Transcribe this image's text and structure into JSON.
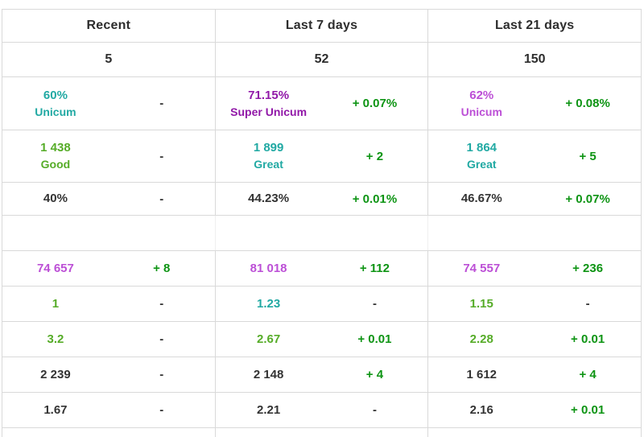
{
  "palette": {
    "dark": "#333333",
    "teal": "#21a9a3",
    "green": "#56ac28",
    "delta_green": "#0e9414",
    "unicum": "#bc4fd6",
    "super_unicum": "#9118a8",
    "border": "#d9d9d9",
    "background": "#ffffff"
  },
  "summary_table": {
    "columns": [
      "Recent",
      "Last 7 days",
      "Last 21 days"
    ],
    "battle_counts": [
      "5",
      "52",
      "150"
    ],
    "rows": [
      {
        "cells": [
          {
            "value": "60%",
            "label": "Unicum",
            "color": "teal",
            "delta": "-",
            "delta_color": "dark"
          },
          {
            "value": "71.15%",
            "label": "Super Unicum",
            "color": "super_unicum",
            "delta": "+ 0.07%",
            "delta_color": "delta_green"
          },
          {
            "value": "62%",
            "label": "Unicum",
            "color": "unicum",
            "delta": "+ 0.08%",
            "delta_color": "delta_green"
          }
        ]
      },
      {
        "cells": [
          {
            "value": "1 438",
            "label": "Good",
            "color": "green",
            "delta": "-",
            "delta_color": "dark"
          },
          {
            "value": "1 899",
            "label": "Great",
            "color": "teal",
            "delta": "+ 2",
            "delta_color": "delta_green"
          },
          {
            "value": "1 864",
            "label": "Great",
            "color": "teal",
            "delta": "+ 5",
            "delta_color": "delta_green"
          }
        ]
      },
      {
        "cells": [
          {
            "value": "40%",
            "color": "dark",
            "delta": "-",
            "delta_color": "dark"
          },
          {
            "value": "44.23%",
            "color": "dark",
            "delta": "+ 0.01%",
            "delta_color": "delta_green"
          },
          {
            "value": "46.67%",
            "color": "dark",
            "delta": "+ 0.07%",
            "delta_color": "delta_green"
          }
        ]
      }
    ]
  },
  "stats_table": {
    "rows": [
      {
        "cells": [
          {
            "value": "74 657",
            "color": "unicum",
            "delta": "+ 8",
            "delta_color": "delta_green"
          },
          {
            "value": "81 018",
            "color": "unicum",
            "delta": "+ 112",
            "delta_color": "delta_green"
          },
          {
            "value": "74 557",
            "color": "unicum",
            "delta": "+ 236",
            "delta_color": "delta_green"
          }
        ]
      },
      {
        "cells": [
          {
            "value": "1",
            "color": "green",
            "delta": "-",
            "delta_color": "dark"
          },
          {
            "value": "1.23",
            "color": "teal",
            "delta": "-",
            "delta_color": "dark"
          },
          {
            "value": "1.15",
            "color": "green",
            "delta": "-",
            "delta_color": "dark"
          }
        ]
      },
      {
        "cells": [
          {
            "value": "3.2",
            "color": "green",
            "delta": "-",
            "delta_color": "dark"
          },
          {
            "value": "2.67",
            "color": "green",
            "delta": "+ 0.01",
            "delta_color": "delta_green"
          },
          {
            "value": "2.28",
            "color": "green",
            "delta": "+ 0.01",
            "delta_color": "delta_green"
          }
        ]
      },
      {
        "cells": [
          {
            "value": "2 239",
            "color": "dark",
            "delta": "-",
            "delta_color": "dark"
          },
          {
            "value": "2 148",
            "color": "dark",
            "delta": "+ 4",
            "delta_color": "delta_green"
          },
          {
            "value": "1 612",
            "color": "dark",
            "delta": "+ 4",
            "delta_color": "delta_green"
          }
        ]
      },
      {
        "cells": [
          {
            "value": "1.67",
            "color": "dark",
            "delta": "-",
            "delta_color": "dark"
          },
          {
            "value": "2.21",
            "color": "dark",
            "delta": "-",
            "delta_color": "dark"
          },
          {
            "value": "2.16",
            "color": "dark",
            "delta": "+ 0.01",
            "delta_color": "delta_green"
          }
        ]
      }
    ]
  }
}
